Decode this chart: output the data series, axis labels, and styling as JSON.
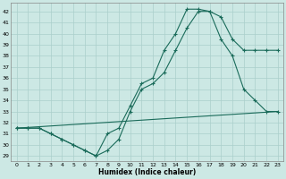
{
  "xlabel": "Humidex (Indice chaleur)",
  "bg_color": "#cce8e4",
  "grid_color": "#aacfcb",
  "line_color": "#1a6b5a",
  "xlim": [
    -0.5,
    23.5
  ],
  "ylim": [
    28.5,
    42.8
  ],
  "yticks": [
    29,
    30,
    31,
    32,
    33,
    34,
    35,
    36,
    37,
    38,
    39,
    40,
    41,
    42
  ],
  "xticks": [
    0,
    1,
    2,
    3,
    4,
    5,
    6,
    7,
    8,
    9,
    10,
    11,
    12,
    13,
    14,
    15,
    16,
    17,
    18,
    19,
    20,
    21,
    22,
    23
  ],
  "line1_x": [
    0,
    1,
    2,
    3,
    4,
    5,
    6,
    7,
    8,
    9,
    10,
    11,
    12,
    13,
    14,
    15,
    16,
    17,
    18,
    19,
    20,
    21,
    22,
    23
  ],
  "line1_y": [
    31.5,
    31.5,
    31.5,
    31.0,
    30.5,
    30.0,
    29.5,
    29.0,
    31.0,
    31.5,
    33.5,
    35.5,
    36.0,
    38.5,
    40.0,
    42.2,
    42.2,
    42.0,
    39.5,
    38.0,
    35.0,
    34.0,
    33.0,
    33.0
  ],
  "line2_x": [
    0,
    1,
    2,
    3,
    4,
    5,
    6,
    7,
    8,
    9,
    10,
    11,
    12,
    13,
    14,
    15,
    16,
    17,
    18,
    19,
    20,
    21,
    22,
    23
  ],
  "line2_y": [
    31.5,
    31.5,
    31.5,
    31.0,
    30.5,
    30.0,
    29.5,
    29.0,
    29.5,
    30.5,
    33.0,
    35.0,
    35.5,
    36.5,
    38.5,
    40.5,
    42.0,
    42.0,
    41.5,
    39.5,
    38.5,
    38.5,
    38.5,
    38.5
  ],
  "line3_x": [
    0,
    23
  ],
  "line3_y": [
    31.5,
    33.0
  ]
}
